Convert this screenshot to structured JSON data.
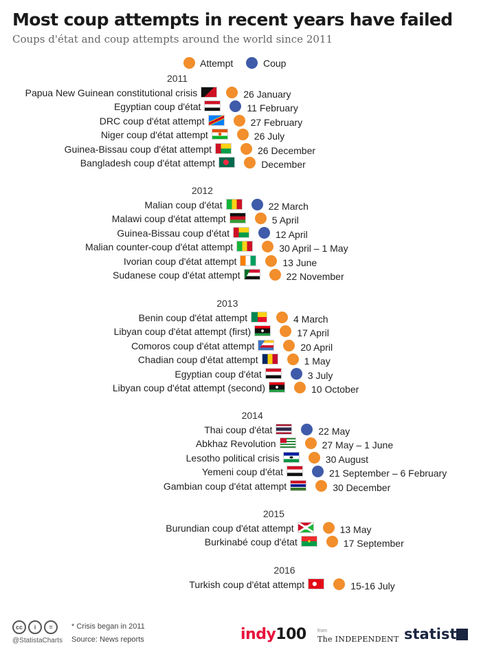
{
  "header": {
    "title": "Most coup attempts in recent years have failed",
    "subtitle": "Coups d'état and coup attempts around the world since 2011"
  },
  "colors": {
    "attempt": "#f28e2b",
    "coup": "#3f5ba9"
  },
  "legend": {
    "attempt": "Attempt",
    "coup": "Coup"
  },
  "chart_data": {
    "type": "table",
    "groups": [
      {
        "year": "2011",
        "events": [
          {
            "name": "Papua New Guinean constitutional crisis",
            "flag": "png",
            "type": "attempt",
            "date": "26 January"
          },
          {
            "name": "Egyptian coup d'état",
            "flag": "egypt",
            "type": "coup",
            "date": "11 February"
          },
          {
            "name": "DRC coup d'état attempt",
            "flag": "drc",
            "type": "attempt",
            "date": "27 February"
          },
          {
            "name": "Niger coup d'état attempt",
            "flag": "niger",
            "type": "attempt",
            "date": "26 July"
          },
          {
            "name": "Guinea-Bissau coup d'état attempt",
            "flag": "guinea-bissau",
            "type": "attempt",
            "date": "26 December"
          },
          {
            "name": "Bangladesh coup d'état attempt",
            "flag": "bangladesh",
            "type": "attempt",
            "date": "December"
          }
        ]
      },
      {
        "year": "2012",
        "events": [
          {
            "name": "Malian coup d'état",
            "flag": "mali",
            "type": "coup",
            "date": "22 March"
          },
          {
            "name": "Malawi coup d'état attempt",
            "flag": "malawi",
            "type": "attempt",
            "date": "5 April"
          },
          {
            "name": "Guinea-Bissau coup d'état",
            "flag": "guinea-bissau",
            "type": "coup",
            "date": "12 April"
          },
          {
            "name": "Malian counter-coup d'état attempt",
            "flag": "mali",
            "type": "attempt",
            "date": "30 April – 1 May"
          },
          {
            "name": "Ivorian coup d'état attempt",
            "flag": "ivory-coast",
            "type": "attempt",
            "date": "13 June"
          },
          {
            "name": "Sudanese coup d'état attempt",
            "flag": "sudan",
            "type": "attempt",
            "date": "22 November"
          }
        ]
      },
      {
        "year": "2013",
        "events": [
          {
            "name": "Benin coup d'état attempt",
            "flag": "benin",
            "type": "attempt",
            "date": "4 March"
          },
          {
            "name": "Libyan coup d'état attempt (first)",
            "flag": "libya",
            "type": "attempt",
            "date": "17 April"
          },
          {
            "name": "Comoros coup d'état attempt",
            "flag": "comoros",
            "type": "attempt",
            "date": "20 April"
          },
          {
            "name": "Chadian coup d'état attempt",
            "flag": "chad",
            "type": "attempt",
            "date": "1 May"
          },
          {
            "name": "Egyptian coup d'état",
            "flag": "egypt",
            "type": "coup",
            "date": "3 July"
          },
          {
            "name": "Libyan coup d'état attempt (second)",
            "flag": "libya",
            "type": "attempt",
            "date": "10 October"
          }
        ]
      },
      {
        "year": "2014",
        "events": [
          {
            "name": "Thai coup d'état",
            "flag": "thailand",
            "type": "coup",
            "date": "22 May"
          },
          {
            "name": "Abkhaz Revolution",
            "flag": "abkhazia",
            "type": "attempt",
            "date": "27 May – 1 June"
          },
          {
            "name": "Lesotho political crisis",
            "flag": "lesotho",
            "type": "attempt",
            "date": "30 August"
          },
          {
            "name": "Yemeni coup d'état",
            "flag": "yemen",
            "type": "coup",
            "date": "21 September – 6 February"
          },
          {
            "name": "Gambian coup d'état attempt",
            "flag": "gambia",
            "type": "attempt",
            "date": "30 December"
          }
        ]
      },
      {
        "year": "2015",
        "events": [
          {
            "name": "Burundian coup d'état attempt",
            "flag": "burundi",
            "type": "attempt",
            "date": "13 May"
          },
          {
            "name": "Burkinabé coup d'état",
            "flag": "burkina-faso",
            "type": "attempt",
            "date": "17 September"
          }
        ]
      },
      {
        "year": "2016",
        "events": [
          {
            "name": "Turkish coup d'état attempt",
            "flag": "turkey",
            "type": "attempt",
            "date": "15-16 July"
          }
        ]
      }
    ]
  },
  "footer": {
    "handle": "@StatistaCharts",
    "note": "* Crisis began in 2011",
    "source": "Source: News reports",
    "logo_indy_a": "indy",
    "logo_indy_b": "100",
    "from_label": "from",
    "independent": "The INDEPENDENT",
    "statista": "statista"
  }
}
